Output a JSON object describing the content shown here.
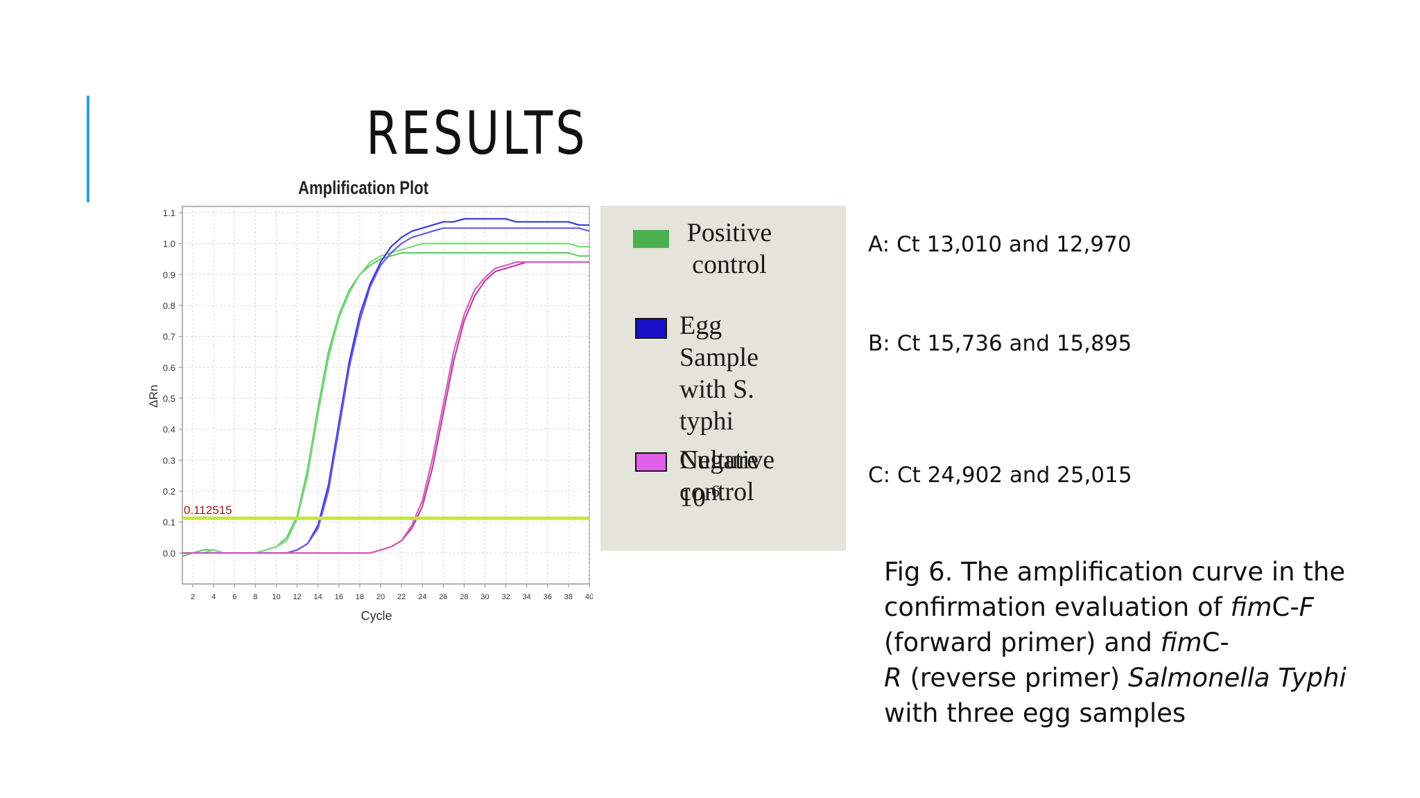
{
  "slide": {
    "title": "RESULTS"
  },
  "chart_data": {
    "type": "line",
    "title": "Amplification Plot",
    "xlabel": "Cycle",
    "ylabel": "ΔRn",
    "xlim": [
      1,
      40
    ],
    "ylim": [
      -0.1,
      1.12
    ],
    "x_ticks": [
      2,
      4,
      6,
      8,
      10,
      12,
      14,
      16,
      18,
      20,
      22,
      24,
      26,
      28,
      30,
      32,
      34,
      36,
      38,
      40
    ],
    "y_ticks": [
      "0.0",
      "0.1",
      "0.2",
      "0.3",
      "0.4",
      "0.5",
      "0.6",
      "0.7",
      "0.8",
      "0.9",
      "1.0",
      "1.1"
    ],
    "threshold": {
      "value": 0.112515,
      "label": "0.112515",
      "color": "#c8e640",
      "label_color": "#a01818"
    },
    "grid": true,
    "x": [
      1,
      2,
      3,
      4,
      5,
      6,
      7,
      8,
      9,
      10,
      11,
      12,
      13,
      14,
      15,
      16,
      17,
      18,
      19,
      20,
      21,
      22,
      23,
      24,
      25,
      26,
      27,
      28,
      29,
      30,
      31,
      32,
      33,
      34,
      35,
      36,
      37,
      38,
      39,
      40
    ],
    "series": [
      {
        "color": "#66cc66",
        "values": [
          -0.01,
          0.0,
          0.01,
          0.01,
          0.0,
          0.0,
          0.0,
          0.0,
          0.01,
          0.02,
          0.05,
          0.12,
          0.27,
          0.47,
          0.65,
          0.77,
          0.85,
          0.9,
          0.93,
          0.95,
          0.96,
          0.97,
          0.97,
          0.97,
          0.97,
          0.97,
          0.97,
          0.97,
          0.97,
          0.97,
          0.97,
          0.97,
          0.97,
          0.97,
          0.97,
          0.97,
          0.97,
          0.97,
          0.96,
          0.96
        ]
      },
      {
        "color": "#7ed87e",
        "values": [
          0.0,
          0.0,
          0.0,
          0.01,
          0.0,
          0.0,
          0.0,
          0.0,
          0.01,
          0.02,
          0.04,
          0.11,
          0.25,
          0.45,
          0.63,
          0.76,
          0.84,
          0.9,
          0.94,
          0.96,
          0.97,
          0.98,
          0.99,
          1.0,
          1.0,
          1.0,
          1.0,
          1.0,
          1.0,
          1.0,
          1.0,
          1.0,
          1.0,
          1.0,
          1.0,
          1.0,
          1.0,
          1.0,
          0.99,
          0.99
        ]
      },
      {
        "color": "#3a3ad8",
        "values": [
          0.0,
          0.0,
          0.0,
          0.0,
          0.0,
          0.0,
          0.0,
          0.0,
          0.0,
          0.0,
          0.0,
          0.01,
          0.03,
          0.09,
          0.22,
          0.42,
          0.62,
          0.77,
          0.87,
          0.94,
          0.99,
          1.02,
          1.04,
          1.05,
          1.06,
          1.07,
          1.07,
          1.08,
          1.08,
          1.08,
          1.08,
          1.08,
          1.07,
          1.07,
          1.07,
          1.07,
          1.07,
          1.07,
          1.06,
          1.06
        ]
      },
      {
        "color": "#6a5ae0",
        "values": [
          0.0,
          0.0,
          0.0,
          0.0,
          0.0,
          0.0,
          0.0,
          0.0,
          0.0,
          0.0,
          0.0,
          0.01,
          0.03,
          0.08,
          0.2,
          0.4,
          0.6,
          0.75,
          0.86,
          0.93,
          0.97,
          1.0,
          1.02,
          1.03,
          1.04,
          1.05,
          1.05,
          1.05,
          1.05,
          1.05,
          1.05,
          1.05,
          1.05,
          1.05,
          1.05,
          1.05,
          1.05,
          1.05,
          1.05,
          1.04
        ]
      },
      {
        "color": "#c040a0",
        "values": [
          0.0,
          0.0,
          0.0,
          0.0,
          0.0,
          0.0,
          0.0,
          0.0,
          0.0,
          0.0,
          0.0,
          0.0,
          0.0,
          0.0,
          0.0,
          0.0,
          0.0,
          0.0,
          0.0,
          0.01,
          0.02,
          0.04,
          0.08,
          0.15,
          0.28,
          0.45,
          0.62,
          0.75,
          0.83,
          0.88,
          0.91,
          0.92,
          0.93,
          0.94,
          0.94,
          0.94,
          0.94,
          0.94,
          0.94,
          0.94
        ]
      },
      {
        "color": "#d060c0",
        "values": [
          0.0,
          0.0,
          0.0,
          0.0,
          0.0,
          0.0,
          0.0,
          0.0,
          0.0,
          0.0,
          0.0,
          0.0,
          0.0,
          0.0,
          0.0,
          0.0,
          0.0,
          0.0,
          0.0,
          0.01,
          0.02,
          0.04,
          0.09,
          0.17,
          0.31,
          0.48,
          0.65,
          0.77,
          0.85,
          0.89,
          0.92,
          0.93,
          0.94,
          0.94,
          0.94,
          0.94,
          0.94,
          0.94,
          0.94,
          0.94
        ]
      }
    ]
  },
  "legend": {
    "items": [
      {
        "lines": [
          "Positive",
          "control"
        ],
        "color": "#4caf50"
      },
      {
        "lines": [
          "Egg Sample",
          "with S. typhi",
          "Culture 10"
        ],
        "superscript": "-6",
        "color": "#1a10c8"
      },
      {
        "lines": [
          "Negative",
          "control"
        ],
        "color": "#e060e8"
      }
    ]
  },
  "ct_values": [
    "A: Ct 13,010 and 12,970",
    "B: Ct 15,736 and 15,895",
    "C: Ct 24,902 and 25,015"
  ],
  "caption": {
    "part1": "Fig 6. The amplification curve in the confirmation evaluation of ",
    "italic1": "fim",
    "part2": "C",
    "italic2": "-F",
    "part3": " (forward primer) and ",
    "italic3": "fim",
    "part4": "C-",
    "italic4": "R",
    "part5": " (reverse primer) ",
    "italic5": "Salmonella Typhi",
    "part6": " with three egg samples"
  }
}
